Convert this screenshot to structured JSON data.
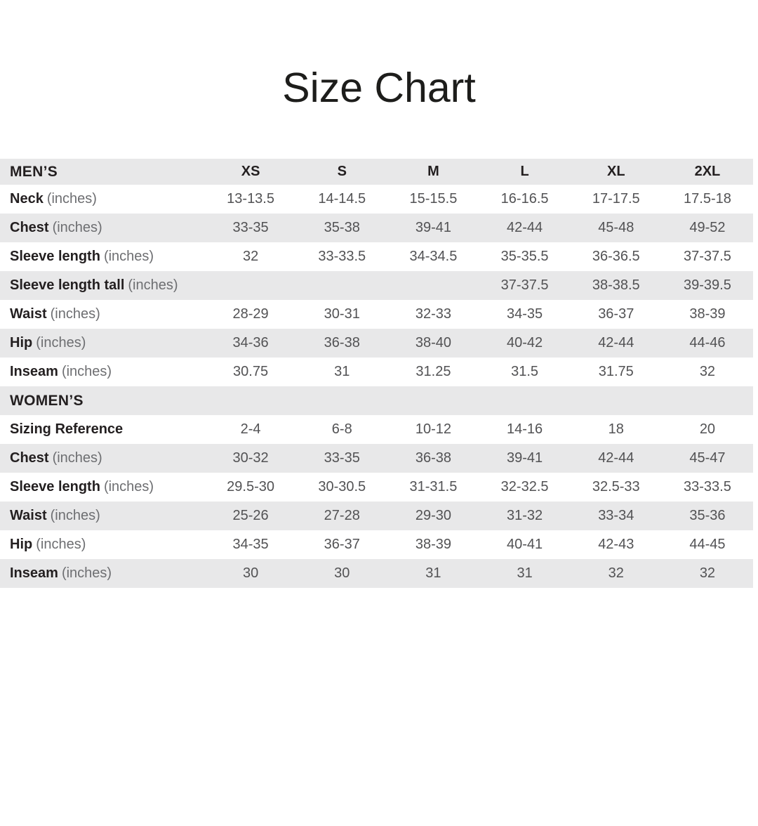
{
  "page": {
    "title": "Size Chart"
  },
  "colors": {
    "row_stripe": "#e8e8e9",
    "background": "#ffffff",
    "label_text": "#231f20",
    "value_text": "#525254",
    "suffix_text": "#6d6e71"
  },
  "table": {
    "columns": [
      "XS",
      "S",
      "M",
      "L",
      "XL",
      "2XL"
    ],
    "sections": [
      {
        "header": "MEN’S",
        "rows": [
          {
            "label": "Neck",
            "suffix": "(inches)",
            "values": [
              "13-13.5",
              "14-14.5",
              "15-15.5",
              "16-16.5",
              "17-17.5",
              "17.5-18"
            ]
          },
          {
            "label": "Chest",
            "suffix": "(inches)",
            "values": [
              "33-35",
              "35-38",
              "39-41",
              "42-44",
              "45-48",
              "49-52"
            ]
          },
          {
            "label": "Sleeve length",
            "suffix": "(inches)",
            "values": [
              "32",
              "33-33.5",
              "34-34.5",
              "35-35.5",
              "36-36.5",
              "37-37.5"
            ]
          },
          {
            "label": "Sleeve length tall",
            "suffix": "(inches)",
            "values": [
              "",
              "",
              "",
              "37-37.5",
              "38-38.5",
              "39-39.5"
            ]
          },
          {
            "label": "Waist",
            "suffix": "(inches)",
            "values": [
              "28-29",
              "30-31",
              "32-33",
              "34-35",
              "36-37",
              "38-39"
            ]
          },
          {
            "label": "Hip",
            "suffix": "(inches)",
            "values": [
              "34-36",
              "36-38",
              "38-40",
              "40-42",
              "42-44",
              "44-46"
            ]
          },
          {
            "label": "Inseam",
            "suffix": "(inches)",
            "values": [
              "30.75",
              "31",
              "31.25",
              "31.5",
              "31.75",
              "32"
            ]
          }
        ]
      },
      {
        "header": "WOMEN’S",
        "rows": [
          {
            "label": "Sizing Reference",
            "suffix": "",
            "values": [
              "2-4",
              "6-8",
              "10-12",
              "14-16",
              "18",
              "20"
            ]
          },
          {
            "label": "Chest",
            "suffix": "(inches)",
            "values": [
              "30-32",
              "33-35",
              "36-38",
              "39-41",
              "42-44",
              "45-47"
            ]
          },
          {
            "label": "Sleeve length",
            "suffix": "(inches)",
            "values": [
              "29.5-30",
              "30-30.5",
              "31-31.5",
              "32-32.5",
              "32.5-33",
              "33-33.5"
            ]
          },
          {
            "label": "Waist",
            "suffix": "(inches)",
            "values": [
              "25-26",
              "27-28",
              "29-30",
              "31-32",
              "33-34",
              "35-36"
            ]
          },
          {
            "label": "Hip",
            "suffix": "(inches)",
            "values": [
              "34-35",
              "36-37",
              "38-39",
              "40-41",
              "42-43",
              "44-45"
            ]
          },
          {
            "label": "Inseam",
            "suffix": "(inches)",
            "values": [
              "30",
              "30",
              "31",
              "31",
              "32",
              "32"
            ]
          }
        ]
      }
    ]
  }
}
